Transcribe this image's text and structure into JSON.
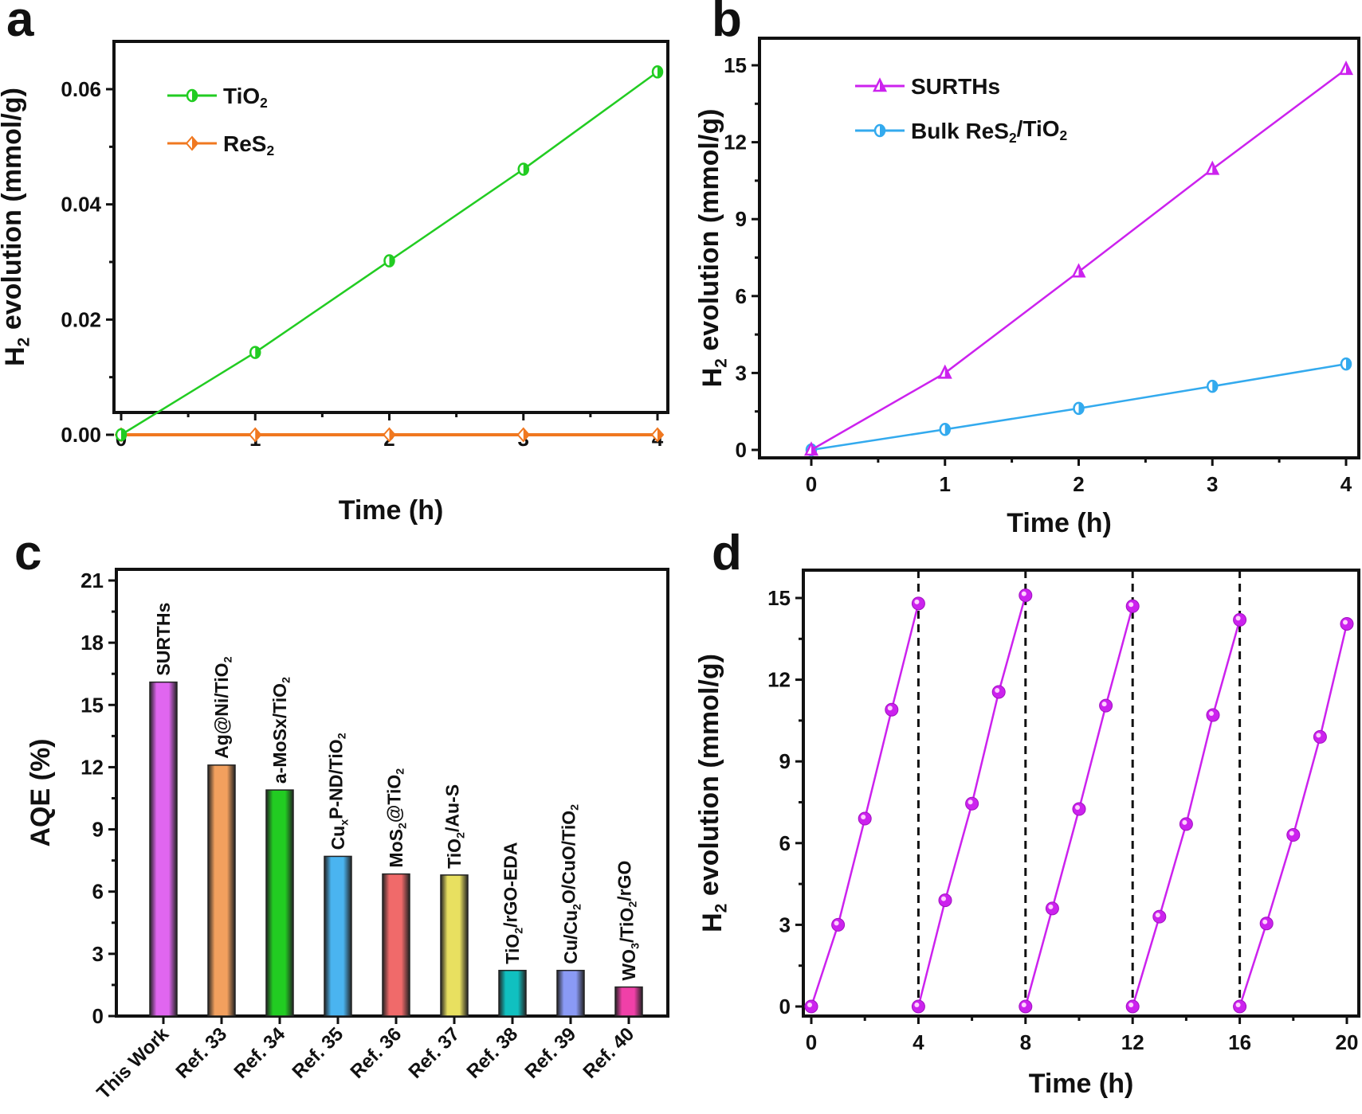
{
  "chart_data": [
    {
      "panel": "a",
      "type": "line",
      "xlabel": "Time (h)",
      "ylabel": "H2 evolution (mmol/g)",
      "ylabel_parts": [
        "H",
        "2",
        " evolution (mmol/g)"
      ],
      "xlim": [
        0,
        4
      ],
      "ylim": [
        -0.0025,
        0.063
      ],
      "xticks": [
        0,
        1,
        2,
        3,
        4
      ],
      "xtick_labels": [
        "0",
        "1",
        "2",
        "3",
        "4"
      ],
      "yticks": [
        0.0,
        0.02,
        0.04,
        0.06
      ],
      "ytick_labels": [
        "0.00",
        "0.02",
        "0.04",
        "0.06"
      ],
      "grid": false,
      "legend_position": "top-left",
      "series": [
        {
          "name": "TiO2",
          "label_parts": [
            "TiO",
            "2"
          ],
          "color": "#22cc22",
          "marker": "half-circle",
          "x": [
            0,
            1,
            2,
            3,
            4
          ],
          "y": [
            0.0,
            0.0143,
            0.0302,
            0.0461,
            0.063
          ]
        },
        {
          "name": "ReS2",
          "label_parts": [
            "ReS",
            "2"
          ],
          "color": "#f07820",
          "marker": "half-diamond",
          "x": [
            0,
            1,
            2,
            3,
            4
          ],
          "y": [
            0.0,
            0.0,
            0.0,
            0.0,
            0.0
          ]
        }
      ]
    },
    {
      "panel": "b",
      "type": "line",
      "xlabel": "Time (h)",
      "ylabel": "H2 evolution (mmol/g)",
      "ylabel_parts": [
        "H",
        "2",
        " evolution (mmol/g)"
      ],
      "xlim": [
        0,
        4
      ],
      "ylim": [
        -0.3,
        15.9
      ],
      "xticks": [
        0,
        1,
        2,
        3,
        4
      ],
      "xtick_labels": [
        "0",
        "1",
        "2",
        "3",
        "4"
      ],
      "yticks": [
        0,
        3,
        6,
        9,
        12,
        15
      ],
      "ytick_labels": [
        "0",
        "3",
        "6",
        "9",
        "12",
        "15"
      ],
      "grid": false,
      "legend_position": "top-left",
      "series": [
        {
          "name": "SURTHs",
          "label_parts": [
            "SURTHs"
          ],
          "color": "#cc22ee",
          "marker": "triangle",
          "x": [
            0,
            1,
            2,
            3,
            4
          ],
          "y": [
            0.0,
            3.0,
            6.95,
            10.95,
            14.85
          ]
        },
        {
          "name": "Bulk ReS2/TiO2",
          "label_parts": [
            "Bulk ReS",
            "2",
            "/TiO",
            "2"
          ],
          "color": "#33aaee",
          "marker": "half-circle",
          "x": [
            0,
            1,
            2,
            3,
            4
          ],
          "y": [
            0.0,
            0.8,
            1.62,
            2.48,
            3.35
          ]
        }
      ]
    },
    {
      "panel": "c",
      "type": "bar",
      "xlabel": "",
      "ylabel": "AQE (%)",
      "ylim": [
        0,
        21
      ],
      "yticks": [
        0,
        3,
        6,
        9,
        12,
        15,
        18,
        21
      ],
      "ytick_labels": [
        "0",
        "3",
        "6",
        "9",
        "12",
        "15",
        "18",
        "21"
      ],
      "grid": false,
      "categories": [
        "This Work",
        "Ref. 33",
        "Ref. 34",
        "Ref. 35",
        "Ref. 36",
        "Ref. 37",
        "Ref. 38",
        "Ref. 39",
        "Ref. 40"
      ],
      "values": [
        16.1,
        12.1,
        10.9,
        7.7,
        6.85,
        6.8,
        2.2,
        2.2,
        1.4
      ],
      "bar_labels": [
        [
          "SURTHs"
        ],
        [
          "Ag@Ni/TiO",
          "2"
        ],
        [
          "a-MoSx/TiO",
          "2"
        ],
        [
          "Cu",
          "x",
          "P-ND/TiO",
          "2"
        ],
        [
          "MoS",
          "2",
          "@TiO",
          "2"
        ],
        [
          "TiO",
          "2",
          "/Au-S"
        ],
        [
          "TiO",
          "2",
          "/rGO-EDA"
        ],
        [
          "Cu/Cu",
          "2",
          "O/CuO/TiO",
          "2"
        ],
        [
          "WO",
          "3",
          "/TiO",
          "2",
          "/rGO"
        ]
      ],
      "colors": [
        "#e066f0",
        "#f2a05e",
        "#22cc22",
        "#4ab4f0",
        "#f06a6a",
        "#e8e060",
        "#10c0c0",
        "#8a9af5",
        "#f040a8"
      ]
    },
    {
      "panel": "d",
      "type": "line",
      "xlabel": "Time (h)",
      "ylabel": "H2 evolution (mmol/g)",
      "ylabel_parts": [
        "H",
        "2",
        " evolution (mmol/g)"
      ],
      "xlim": [
        -0.2,
        20.2
      ],
      "ylim": [
        -0.6,
        16.0
      ],
      "xticks": [
        0,
        4,
        8,
        12,
        16,
        20
      ],
      "xtick_labels": [
        "0",
        "4",
        "8",
        "12",
        "16",
        "20"
      ],
      "yticks": [
        0,
        3,
        6,
        9,
        12,
        15
      ],
      "ytick_labels": [
        "0",
        "3",
        "6",
        "9",
        "12",
        "15"
      ],
      "grid": false,
      "cycle_dividers": [
        4,
        8,
        12,
        16
      ],
      "color": "#cc22ee",
      "marker": "sphere",
      "cycles": [
        {
          "x": [
            0,
            1,
            2,
            3,
            4
          ],
          "y": [
            0.0,
            3.0,
            6.9,
            10.9,
            14.8
          ]
        },
        {
          "x": [
            4,
            5,
            6,
            7,
            8
          ],
          "y": [
            0.0,
            3.9,
            7.45,
            11.55,
            15.1
          ]
        },
        {
          "x": [
            8,
            9,
            10,
            11,
            12
          ],
          "y": [
            0.0,
            3.6,
            7.25,
            11.05,
            14.7
          ]
        },
        {
          "x": [
            12,
            13,
            14,
            15,
            16
          ],
          "y": [
            0.0,
            3.3,
            6.7,
            10.7,
            14.2
          ]
        },
        {
          "x": [
            16,
            17,
            18,
            19,
            20
          ],
          "y": [
            0.0,
            3.05,
            6.3,
            9.9,
            14.05
          ]
        }
      ]
    }
  ],
  "panel_letters": [
    "a",
    "b",
    "c",
    "d"
  ]
}
